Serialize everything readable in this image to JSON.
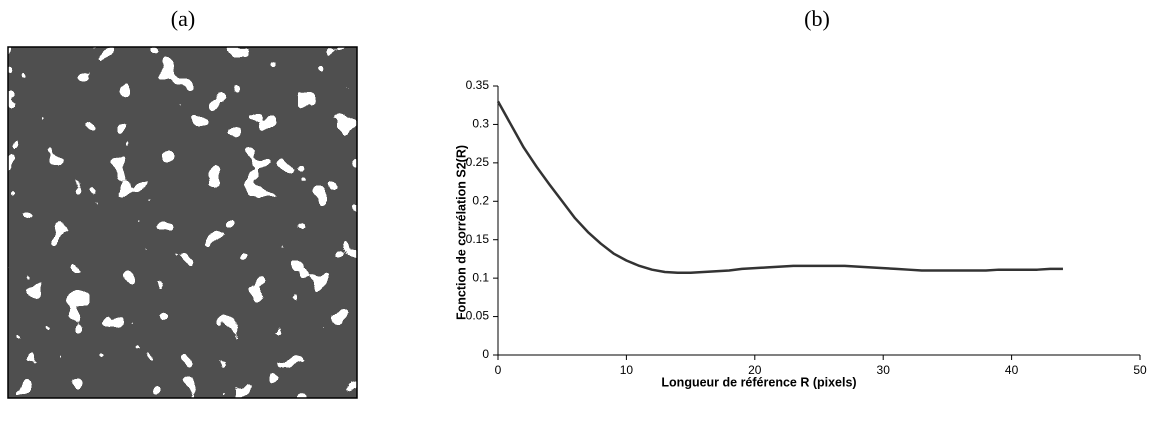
{
  "panels": {
    "a": "(a)",
    "b": "(b)"
  },
  "chart_data": {
    "type": "line",
    "xlabel": "Longueur de référence R (pixels)",
    "ylabel": "Fonction de corrélation S2(R)",
    "x": [
      0,
      1,
      2,
      3,
      4,
      5,
      6,
      7,
      8,
      9,
      10,
      11,
      12,
      13,
      14,
      15,
      16,
      17,
      18,
      19,
      20,
      21,
      22,
      23,
      24,
      25,
      26,
      27,
      28,
      29,
      30,
      31,
      32,
      33,
      34,
      35,
      36,
      37,
      38,
      39,
      40,
      41,
      42,
      43,
      44
    ],
    "series": [
      {
        "color": "#333333",
        "values": [
          0.33,
          0.3,
          0.27,
          0.245,
          0.222,
          0.2,
          0.178,
          0.16,
          0.145,
          0.132,
          0.123,
          0.116,
          0.111,
          0.108,
          0.107,
          0.107,
          0.108,
          0.109,
          0.11,
          0.112,
          0.113,
          0.114,
          0.115,
          0.116,
          0.116,
          0.116,
          0.116,
          0.116,
          0.115,
          0.114,
          0.113,
          0.112,
          0.111,
          0.11,
          0.11,
          0.11,
          0.11,
          0.11,
          0.11,
          0.111,
          0.111,
          0.111,
          0.111,
          0.112,
          0.112
        ]
      }
    ],
    "xlim": [
      0,
      50
    ],
    "xticks": [
      0,
      10,
      20,
      30,
      40,
      50
    ],
    "ylim": [
      0,
      0.35
    ],
    "yticks": [
      0,
      0.05,
      0.1,
      0.15,
      0.2,
      0.25,
      0.3,
      0.35
    ],
    "grid": false
  }
}
